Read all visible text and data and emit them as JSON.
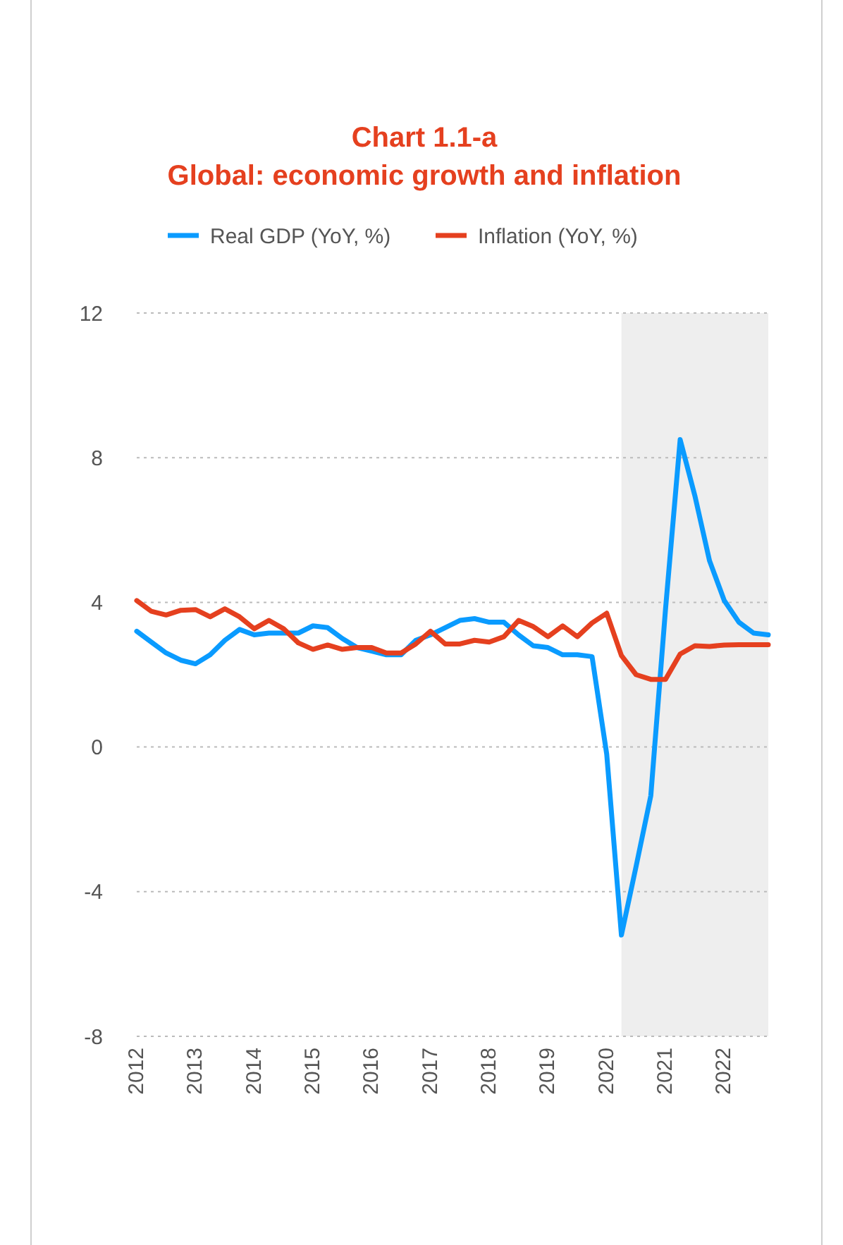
{
  "chart_data": {
    "type": "line",
    "title": "Chart 1.1-a\nGlobal: economic growth and inflation",
    "x": [
      2012,
      2012.25,
      2012.5,
      2012.75,
      2013,
      2013.25,
      2013.5,
      2013.75,
      2014,
      2014.25,
      2014.5,
      2014.75,
      2015,
      2015.25,
      2015.5,
      2015.75,
      2016,
      2016.25,
      2016.5,
      2016.75,
      2017,
      2017.25,
      2017.5,
      2017.75,
      2018,
      2018.25,
      2018.5,
      2018.75,
      2019,
      2019.25,
      2019.5,
      2019.75,
      2020,
      2020.25,
      2020.5,
      2020.75,
      2021,
      2021.25,
      2021.5,
      2021.75,
      2022,
      2022.25,
      2022.5,
      2022.75
    ],
    "series": [
      {
        "name": "Real GDP (YoY, %)",
        "color": "#0a9bff",
        "values": [
          3.2,
          2.9,
          2.6,
          2.4,
          2.3,
          2.55,
          2.95,
          3.25,
          3.1,
          3.15,
          3.15,
          3.15,
          3.35,
          3.3,
          3.0,
          2.75,
          2.65,
          2.55,
          2.55,
          2.95,
          3.1,
          3.3,
          3.5,
          3.55,
          3.45,
          3.45,
          3.1,
          2.8,
          2.75,
          2.55,
          2.55,
          2.5,
          -0.2,
          -5.2,
          -3.3,
          -1.35,
          3.8,
          8.5,
          6.95,
          5.15,
          4.05,
          3.45,
          3.15,
          3.1
        ]
      },
      {
        "name": "Inflation (YoY, %)",
        "color": "#e5401f",
        "values": [
          4.05,
          3.75,
          3.65,
          3.78,
          3.8,
          3.6,
          3.82,
          3.6,
          3.27,
          3.5,
          3.27,
          2.88,
          2.7,
          2.82,
          2.7,
          2.75,
          2.75,
          2.6,
          2.6,
          2.85,
          3.2,
          2.85,
          2.85,
          2.95,
          2.9,
          3.05,
          3.5,
          3.33,
          3.05,
          3.35,
          3.05,
          3.43,
          3.7,
          2.53,
          2.0,
          1.87,
          1.87,
          2.57,
          2.8,
          2.78,
          2.82,
          2.83,
          2.83,
          2.83
        ]
      }
    ],
    "xlim": [
      2012,
      2022.75
    ],
    "xticks": [
      2012,
      2013,
      2014,
      2015,
      2016,
      2017,
      2018,
      2019,
      2020,
      2021,
      2022
    ],
    "ylim": [
      -8,
      12
    ],
    "yticks": [
      -8,
      -4,
      0,
      4,
      8,
      12
    ],
    "grid": "y",
    "legend": "top",
    "line_style": "solid",
    "marker": "none",
    "bands": [
      {
        "axis": "x",
        "from": 2020.25,
        "to": 2022.75,
        "color": "#eeeeee"
      }
    ]
  }
}
